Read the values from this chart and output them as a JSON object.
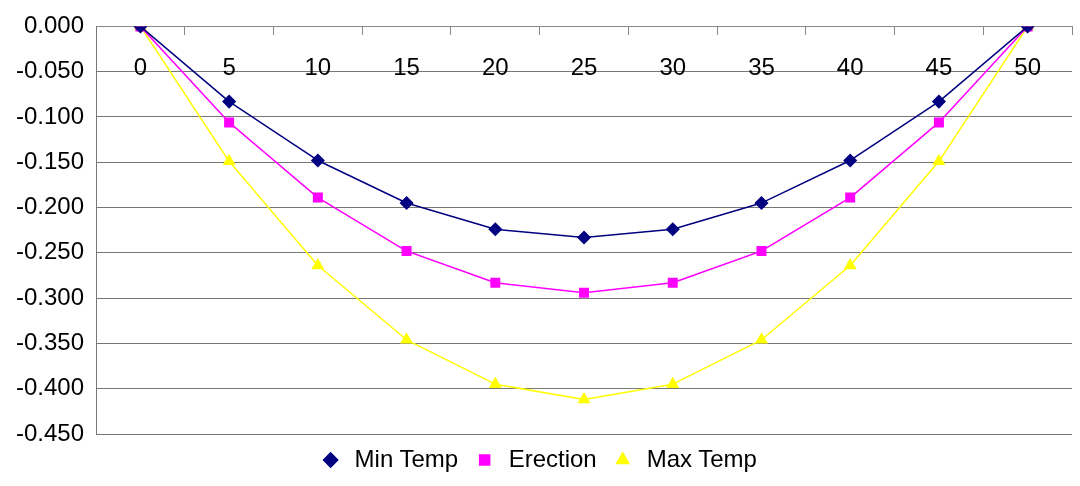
{
  "chart_data": {
    "type": "line",
    "categories": [
      "0",
      "5",
      "10",
      "15",
      "20",
      "25",
      "30",
      "35",
      "40",
      "45",
      "50"
    ],
    "series": [
      {
        "name": "Min Temp",
        "color": "#000080",
        "marker": "diamond",
        "values": [
          0,
          -0.083,
          -0.148,
          -0.195,
          -0.224,
          -0.233,
          -0.224,
          -0.195,
          -0.148,
          -0.083,
          0
        ]
      },
      {
        "name": "Erection",
        "color": "#ff00ff",
        "marker": "square",
        "values": [
          0,
          -0.106,
          -0.189,
          -0.248,
          -0.283,
          -0.294,
          -0.283,
          -0.248,
          -0.189,
          -0.106,
          0
        ]
      },
      {
        "name": "Max Temp",
        "color": "#ffff00",
        "marker": "triangle",
        "values": [
          0,
          -0.149,
          -0.264,
          -0.346,
          -0.395,
          -0.412,
          -0.395,
          -0.346,
          -0.264,
          -0.149,
          0
        ]
      }
    ],
    "ylim": [
      -0.45,
      0
    ],
    "yticks": [
      {
        "value": 0,
        "label": "0.000"
      },
      {
        "value": -0.05,
        "label": "-0.050"
      },
      {
        "value": -0.1,
        "label": "-0.100"
      },
      {
        "value": -0.15,
        "label": "-0.150"
      },
      {
        "value": -0.2,
        "label": "-0.200"
      },
      {
        "value": -0.25,
        "label": "-0.250"
      },
      {
        "value": -0.3,
        "label": "-0.300"
      },
      {
        "value": -0.35,
        "label": "-0.350"
      },
      {
        "value": -0.4,
        "label": "-0.400"
      },
      {
        "value": -0.45,
        "label": "-0.450"
      }
    ],
    "grid": "y",
    "legend": "bottom",
    "line_style": "solid"
  }
}
